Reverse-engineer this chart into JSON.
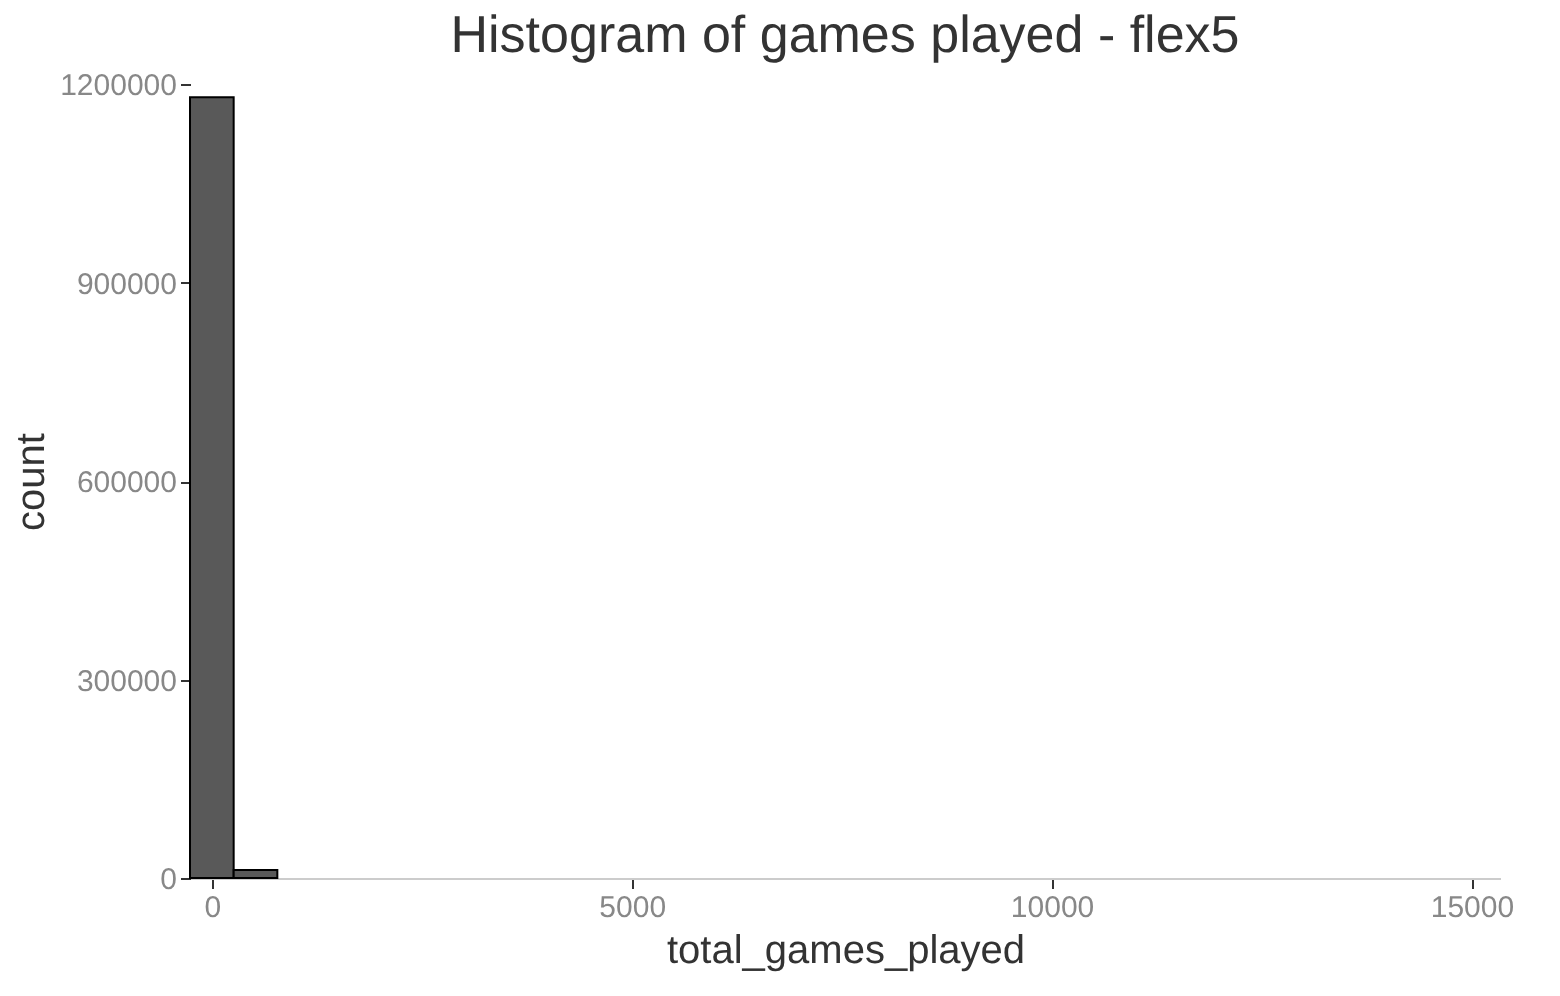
{
  "chart_data": {
    "type": "histogram",
    "title": "Histogram of games played - flex5",
    "xlabel": "total_games_played",
    "ylabel": "count",
    "bins": [
      -260,
      260,
      780,
      1300,
      1820,
      2340,
      2860,
      3380,
      3900,
      4420,
      4940,
      5460,
      5980,
      6500,
      7020,
      7540,
      8060,
      8580,
      9100,
      9620,
      10140,
      10660,
      11180,
      11700,
      12220,
      12740,
      13260,
      13780,
      14300,
      14820,
      15340
    ],
    "values": [
      1180000,
      12000,
      0,
      0,
      0,
      0,
      0,
      0,
      0,
      0,
      0,
      0,
      0,
      0,
      0,
      0,
      0,
      0,
      0,
      0,
      0,
      0,
      0,
      0,
      0,
      0,
      0,
      0,
      0,
      0
    ],
    "color": "#595959",
    "xlim": [
      -260,
      15340
    ],
    "xticks": [
      0,
      5000,
      10000,
      15000
    ],
    "ylim": [
      0,
      1200000
    ],
    "yticks": [
      0,
      300000,
      600000,
      900000,
      1200000
    ],
    "grid": false
  }
}
